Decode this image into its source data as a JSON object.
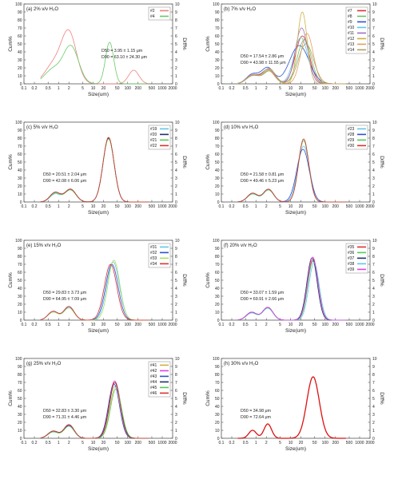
{
  "x_ticks": [
    "0.1",
    "0.2",
    "0.5",
    "1",
    "2",
    "5",
    "10",
    "20",
    "50",
    "100",
    "200",
    "500",
    "1000",
    "2000"
  ],
  "x_tick_values": [
    0.1,
    0.2,
    0.5,
    1,
    2,
    5,
    10,
    20,
    50,
    100,
    200,
    500,
    1000,
    2000
  ],
  "y_left_ticks": [
    "0",
    "10",
    "20",
    "30",
    "40",
    "50",
    "60",
    "70",
    "80",
    "90",
    "100"
  ],
  "y_right_ticks": [
    "0",
    "1",
    "2",
    "3",
    "4",
    "5",
    "6",
    "7",
    "8",
    "9",
    "10"
  ],
  "xlabel": "Size(um)",
  "ylabel_left": "Cum%",
  "ylabel_right": "Diff%",
  "chart_data": [
    {
      "type": "line",
      "panel": "(a) 2% v/v H₂O",
      "xlim": [
        0.1,
        2000
      ],
      "ylim": [
        0,
        100
      ],
      "y2lim": [
        0,
        10
      ],
      "xscale": "log",
      "stats": [
        "D50 = 3.95 ± 1.15 μm",
        "D90 = 63.10 ± 24.30 μm"
      ],
      "series": [
        {
          "name": "#2",
          "color": "#f08080",
          "peaks": [
            [
              0.7,
              2.3,
              0.25
            ],
            [
              2.0,
              6.3,
              0.22
            ],
            [
              150,
              1.7,
              0.15
            ]
          ]
        },
        {
          "name": "#4",
          "color": "#66cc66",
          "peaks": [
            [
              0.7,
              1.8,
              0.25
            ],
            [
              2.3,
              4.6,
              0.22
            ],
            [
              30,
              5.2,
              0.12
            ]
          ]
        }
      ]
    },
    {
      "type": "line",
      "panel": "(b) 7% v/v H₂O",
      "xlim": [
        0.1,
        2000
      ],
      "ylim": [
        0,
        100
      ],
      "y2lim": [
        0,
        10
      ],
      "xscale": "log",
      "stats": [
        "D50 = 17.54 ± 2.86 μm",
        "D90 = 43.98 ± 11.55 μm"
      ],
      "series": [
        {
          "name": "#7",
          "color": "#e03030",
          "peaks": [
            [
              0.8,
              1.0,
              0.18
            ],
            [
              2.3,
              1.8,
              0.18
            ],
            [
              22,
              6.0,
              0.2
            ]
          ]
        },
        {
          "name": "#8",
          "color": "#70c070",
          "peaks": [
            [
              0.8,
              1.1,
              0.18
            ],
            [
              2.5,
              1.6,
              0.18
            ],
            [
              25,
              5.5,
              0.2
            ]
          ]
        },
        {
          "name": "#9",
          "color": "#3050d0",
          "peaks": [
            [
              0.8,
              1.2,
              0.18
            ],
            [
              2.2,
              2.0,
              0.18
            ],
            [
              18,
              4.8,
              0.28
            ]
          ]
        },
        {
          "name": "#10",
          "color": "#5ec8e8",
          "peaks": [
            [
              0.8,
              1.0,
              0.18
            ],
            [
              2.4,
              1.7,
              0.18
            ],
            [
              20,
              5.8,
              0.2
            ]
          ]
        },
        {
          "name": "#11",
          "color": "#a070c0",
          "peaks": [
            [
              0.8,
              1.1,
              0.18
            ],
            [
              2.3,
              1.8,
              0.18
            ],
            [
              21,
              7.0,
              0.18
            ]
          ]
        },
        {
          "name": "#12",
          "color": "#d0b040",
          "peaks": [
            [
              0.8,
              1.0,
              0.18
            ],
            [
              2.3,
              1.6,
              0.18
            ],
            [
              22,
              9.0,
              0.14
            ]
          ]
        },
        {
          "name": "#13",
          "color": "#e0a060",
          "peaks": [
            [
              0.8,
              1.1,
              0.18
            ],
            [
              2.5,
              1.7,
              0.18
            ],
            [
              30,
              6.3,
              0.18
            ]
          ]
        },
        {
          "name": "#14",
          "color": "#b0a060",
          "peaks": [
            [
              0.8,
              1.0,
              0.18
            ],
            [
              2.4,
              1.9,
              0.18
            ],
            [
              28,
              5.0,
              0.22
            ]
          ]
        }
      ]
    },
    {
      "type": "line",
      "panel": "(c) 5% v/v H₂O",
      "xlim": [
        0.1,
        2000
      ],
      "ylim": [
        0,
        100
      ],
      "y2lim": [
        0,
        10
      ],
      "xscale": "log",
      "stats": [
        "D50 = 20.51 ± 2.04 μm",
        "D90 = 42.08 ± 6.06 μm"
      ],
      "series": [
        {
          "name": "#19",
          "color": "#5ec8e8",
          "peaks": [
            [
              0.8,
              1.0,
              0.15
            ],
            [
              2.2,
              1.6,
              0.16
            ],
            [
              28,
              8.0,
              0.16
            ]
          ]
        },
        {
          "name": "#20",
          "color": "#203070",
          "peaks": [
            [
              0.8,
              1.2,
              0.15
            ],
            [
              2.2,
              1.6,
              0.16
            ],
            [
              28,
              8.0,
              0.16
            ]
          ]
        },
        {
          "name": "#21",
          "color": "#55cc55",
          "peaks": [
            [
              0.8,
              1.1,
              0.15
            ],
            [
              2.2,
              1.5,
              0.16
            ],
            [
              28,
              7.9,
              0.16
            ]
          ]
        },
        {
          "name": "#22",
          "color": "#e03030",
          "peaks": [
            [
              0.8,
              1.2,
              0.15
            ],
            [
              2.2,
              1.6,
              0.16
            ],
            [
              28,
              8.1,
              0.16
            ]
          ]
        }
      ]
    },
    {
      "type": "line",
      "panel": "(d) 10% v/v H₂O",
      "xlim": [
        0.1,
        2000
      ],
      "ylim": [
        0,
        100
      ],
      "y2lim": [
        0,
        10
      ],
      "xscale": "log",
      "stats": [
        "D50 = 21.58 ± 0.81 μm",
        "D90 = 49.46 ± 5.23 μm"
      ],
      "series": [
        {
          "name": "#23",
          "color": "#5ec8e8",
          "peaks": [
            [
              0.8,
              1.0,
              0.15
            ],
            [
              2.3,
              1.5,
              0.15
            ],
            [
              24,
              7.0,
              0.17
            ]
          ]
        },
        {
          "name": "#28",
          "color": "#3050d0",
          "peaks": [
            [
              0.8,
              1.1,
              0.15
            ],
            [
              2.3,
              1.6,
              0.15
            ],
            [
              23,
              6.6,
              0.18
            ]
          ]
        },
        {
          "name": "#29",
          "color": "#55cc55",
          "peaks": [
            [
              0.8,
              1.0,
              0.15
            ],
            [
              2.3,
              1.5,
              0.15
            ],
            [
              24,
              7.7,
              0.15
            ]
          ]
        },
        {
          "name": "#30",
          "color": "#e03030",
          "peaks": [
            [
              0.8,
              1.1,
              0.15
            ],
            [
              2.3,
              1.6,
              0.15
            ],
            [
              24,
              7.9,
              0.15
            ]
          ]
        }
      ]
    },
    {
      "type": "line",
      "panel": "(e) 15% v/v H₂O",
      "xlim": [
        0.1,
        2000
      ],
      "ylim": [
        0,
        100
      ],
      "y2lim": [
        0,
        10
      ],
      "xscale": "log",
      "stats": [
        "D50 = 29.83 ± 3.73 μm",
        "D90 = 64.95 ± 7.09 μm"
      ],
      "series": [
        {
          "name": "#31",
          "color": "#5ec8e8",
          "peaks": [
            [
              0.7,
              1.0,
              0.15
            ],
            [
              2.0,
              1.6,
              0.15
            ],
            [
              38,
              7.3,
              0.18
            ]
          ]
        },
        {
          "name": "#32",
          "color": "#3050d0",
          "peaks": [
            [
              0.7,
              1.1,
              0.15
            ],
            [
              2.0,
              1.7,
              0.15
            ],
            [
              35,
              7.0,
              0.18
            ]
          ]
        },
        {
          "name": "#33",
          "color": "#a8e060",
          "peaks": [
            [
              0.7,
              1.0,
              0.15
            ],
            [
              2.0,
              1.5,
              0.15
            ],
            [
              40,
              7.5,
              0.17
            ]
          ]
        },
        {
          "name": "#34",
          "color": "#e03030",
          "peaks": [
            [
              0.7,
              1.1,
              0.15
            ],
            [
              2.0,
              1.7,
              0.15
            ],
            [
              32,
              7.0,
              0.18
            ]
          ]
        }
      ]
    },
    {
      "type": "line",
      "panel": "(f) 20% v/v H₂O",
      "xlim": [
        0.1,
        2000
      ],
      "ylim": [
        0,
        100
      ],
      "y2lim": [
        0,
        10
      ],
      "xscale": "log",
      "stats": [
        "D50 = 33.07 ± 1.59 μm",
        "D90 = 69.91 ± 2.66 μm"
      ],
      "series": [
        {
          "name": "#35",
          "color": "#e03030",
          "peaks": [
            [
              0.75,
              0.9,
              0.15
            ],
            [
              2.2,
              1.6,
              0.15
            ],
            [
              45,
              7.6,
              0.15
            ]
          ]
        },
        {
          "name": "#36",
          "color": "#55cc55",
          "peaks": [
            [
              0.75,
              1.0,
              0.15
            ],
            [
              2.2,
              1.5,
              0.15
            ],
            [
              45,
              7.4,
              0.15
            ]
          ]
        },
        {
          "name": "#37",
          "color": "#203070",
          "peaks": [
            [
              0.75,
              1.0,
              0.15
            ],
            [
              2.2,
              1.6,
              0.15
            ],
            [
              42,
              7.8,
              0.15
            ]
          ]
        },
        {
          "name": "#38",
          "color": "#5ec8e8",
          "peaks": [
            [
              0.75,
              0.9,
              0.15
            ],
            [
              2.2,
              1.5,
              0.15
            ],
            [
              48,
              7.2,
              0.15
            ]
          ]
        },
        {
          "name": "#39",
          "color": "#e040e0",
          "peaks": [
            [
              0.75,
              1.0,
              0.15
            ],
            [
              2.2,
              1.6,
              0.15
            ],
            [
              44,
              7.9,
              0.15
            ]
          ]
        }
      ]
    },
    {
      "type": "line",
      "panel": "(g) 25% v/v H₂O",
      "xlim": [
        0.1,
        2000
      ],
      "ylim": [
        0,
        100
      ],
      "y2lim": [
        0,
        10
      ],
      "xscale": "log",
      "stats": [
        "D50 = 32.83 ± 3.30 μm",
        "D90 = 71.31 ± 4.46 μm"
      ],
      "series": [
        {
          "name": "#41",
          "color": "#d0b040",
          "peaks": [
            [
              0.7,
              0.8,
              0.15
            ],
            [
              2.0,
              1.6,
              0.15
            ],
            [
              45,
              6.6,
              0.16
            ]
          ]
        },
        {
          "name": "#42",
          "color": "#e040e0",
          "peaks": [
            [
              0.7,
              0.9,
              0.15
            ],
            [
              2.0,
              1.7,
              0.15
            ],
            [
              42,
              7.2,
              0.16
            ]
          ]
        },
        {
          "name": "#43",
          "color": "#3050d0",
          "peaks": [
            [
              0.7,
              0.8,
              0.15
            ],
            [
              2.0,
              1.6,
              0.15
            ],
            [
              40,
              6.8,
              0.16
            ]
          ]
        },
        {
          "name": "#44",
          "color": "#203070",
          "peaks": [
            [
              0.7,
              0.9,
              0.15
            ],
            [
              2.0,
              1.7,
              0.15
            ],
            [
              43,
              7.0,
              0.16
            ]
          ]
        },
        {
          "name": "#45",
          "color": "#55cc55",
          "peaks": [
            [
              0.7,
              0.8,
              0.15
            ],
            [
              2.0,
              1.5,
              0.15
            ],
            [
              46,
              6.2,
              0.16
            ]
          ]
        },
        {
          "name": "#46",
          "color": "#e03030",
          "peaks": [
            [
              0.7,
              0.9,
              0.15
            ],
            [
              2.0,
              1.7,
              0.15
            ],
            [
              42,
              7.0,
              0.16
            ]
          ]
        }
      ]
    },
    {
      "type": "line",
      "panel": "(h) 30% v/v H₂O",
      "xlim": [
        0.1,
        2000
      ],
      "ylim": [
        0,
        100
      ],
      "y2lim": [
        0,
        10
      ],
      "xscale": "log",
      "stats": [
        "D50 = 34.98 μm",
        "D90 = 72.64 μm"
      ],
      "series": [
        {
          "name": "",
          "color": "#dd1111",
          "peaks": [
            [
              0.8,
              1.0,
              0.11
            ],
            [
              2.2,
              1.8,
              0.11
            ],
            [
              45,
              7.7,
              0.18
            ]
          ]
        }
      ]
    }
  ]
}
